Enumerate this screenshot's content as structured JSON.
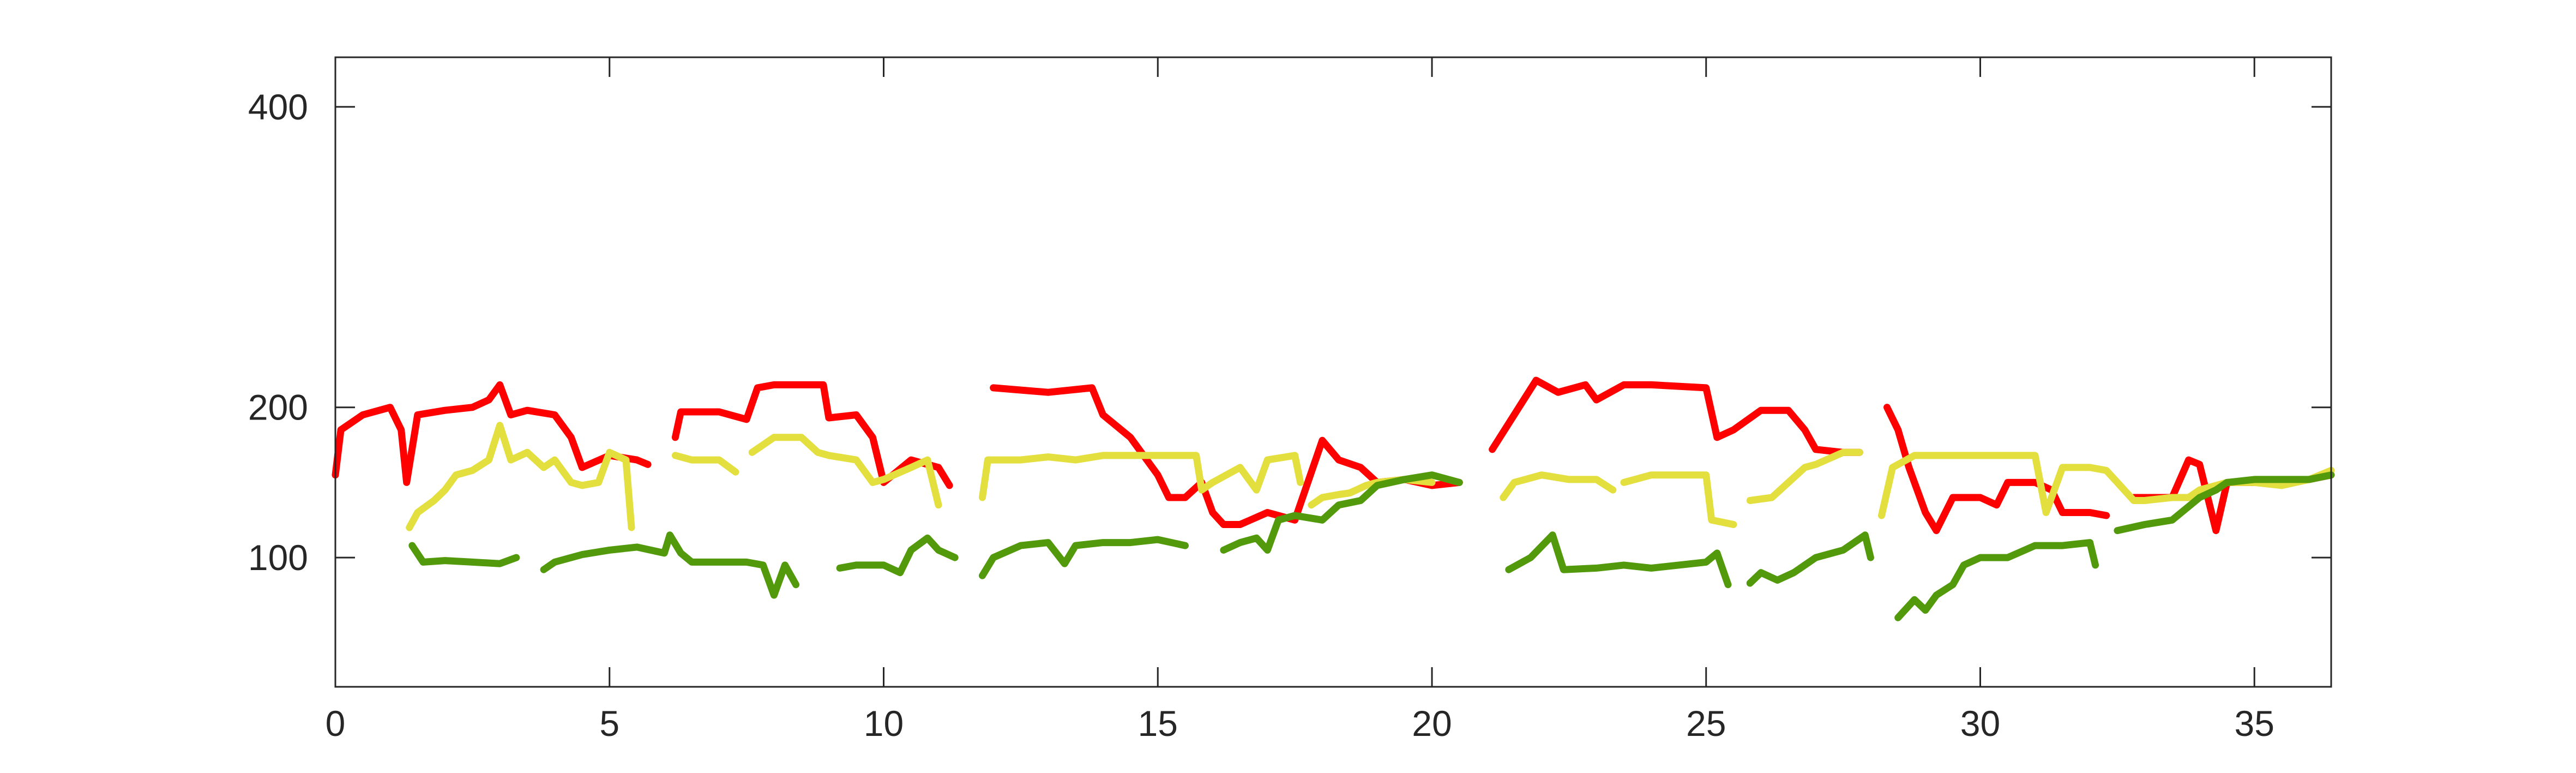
{
  "chart_data": {
    "type": "line",
    "xlim": [
      0,
      36.4
    ],
    "ylim": [
      14,
      433
    ],
    "xticks": [
      0,
      5,
      10,
      15,
      20,
      25,
      30,
      35
    ],
    "yticks": [
      100,
      200,
      400
    ],
    "series": [
      {
        "color": "#ff0000",
        "x": [
          0,
          0.1,
          0.5,
          1.0,
          1.2,
          1.3,
          1.5,
          2,
          2.5,
          2.8,
          3.0,
          3.2,
          3.5,
          4.0,
          4.3,
          4.5,
          5,
          5.5,
          5.7,
          null,
          6.2,
          6.3,
          7,
          7.5,
          7.7,
          8,
          8.5,
          8.9,
          9,
          9.5,
          9.8,
          10,
          10.5,
          11,
          11.2,
          null,
          12,
          13,
          13.8,
          14,
          14.5,
          15,
          15.2,
          15.5,
          15.8,
          16,
          16.2,
          16.5,
          17,
          17.5,
          18,
          18.3,
          18.7,
          19,
          19.5,
          20,
          20.5,
          null,
          21.1,
          21.5,
          21.9,
          22.3,
          22.8,
          23,
          23.5,
          24,
          25,
          25.2,
          25.5,
          26,
          26.5,
          26.8,
          27,
          27.5,
          27.8,
          null,
          28.3,
          28.5,
          28.7,
          29,
          29.2,
          29.5,
          30,
          30.3,
          30.5,
          31,
          31.3,
          31.5,
          32,
          32.3,
          null,
          32.8,
          33,
          33.5,
          33.8,
          34,
          34.3,
          34.5,
          35,
          36,
          36.4
        ],
        "values": [
          155,
          185,
          195,
          200,
          185,
          150,
          195,
          198,
          200,
          205,
          215,
          195,
          198,
          195,
          180,
          160,
          168,
          165,
          162,
          null,
          180,
          197,
          197,
          192,
          213,
          215,
          215,
          215,
          193,
          195,
          180,
          150,
          165,
          160,
          148,
          null,
          213,
          210,
          213,
          195,
          180,
          155,
          140,
          140,
          150,
          130,
          122,
          122,
          130,
          125,
          178,
          165,
          160,
          150,
          152,
          148,
          150,
          null,
          172,
          195,
          218,
          210,
          215,
          205,
          215,
          215,
          213,
          180,
          185,
          198,
          198,
          185,
          172,
          170,
          170,
          null,
          200,
          185,
          160,
          130,
          118,
          140,
          140,
          135,
          150,
          150,
          145,
          130,
          130,
          128,
          null,
          140,
          140,
          140,
          165,
          162,
          118,
          150,
          150,
          152,
          155
        ]
      },
      {
        "color": "#e3df3f",
        "x": [
          1.35,
          1.5,
          1.8,
          2,
          2.2,
          2.5,
          2.8,
          3.0,
          3.2,
          3.5,
          3.8,
          4,
          4.3,
          4.5,
          4.8,
          5,
          5.3,
          5.4,
          null,
          6.2,
          6.5,
          7,
          7.3,
          null,
          7.6,
          8,
          8.5,
          8.8,
          9,
          9.5,
          9.8,
          10,
          10.5,
          10.8,
          11,
          null,
          11.8,
          11.9,
          12.5,
          13,
          13.5,
          14,
          15,
          15.7,
          15.8,
          16,
          16.5,
          16.8,
          17,
          17.5,
          17.6,
          null,
          17.8,
          18,
          18.3,
          18.5,
          18.8,
          19,
          19.5,
          20,
          null,
          21.3,
          21.5,
          22,
          22.5,
          23,
          23.3,
          null,
          23.5,
          24,
          24.5,
          25,
          25.1,
          25.5,
          null,
          25.8,
          26.2,
          26.5,
          26.8,
          27,
          27.5,
          27.8,
          null,
          28.2,
          28.4,
          28.8,
          29.5,
          30,
          30.5,
          31,
          31.2,
          31.5,
          32,
          32.3,
          32.5,
          32.8,
          33,
          33.5,
          33.8,
          34,
          34.5,
          35,
          35.5,
          36,
          36.4
        ],
        "values": [
          120,
          130,
          138,
          145,
          155,
          158,
          165,
          188,
          165,
          170,
          160,
          165,
          150,
          148,
          150,
          170,
          165,
          120,
          null,
          168,
          165,
          165,
          157,
          null,
          170,
          180,
          180,
          170,
          168,
          165,
          150,
          152,
          160,
          165,
          135,
          null,
          140,
          165,
          165,
          167,
          165,
          168,
          168,
          168,
          145,
          150,
          160,
          145,
          165,
          168,
          150,
          null,
          135,
          140,
          142,
          143,
          148,
          150,
          152,
          150,
          null,
          140,
          150,
          155,
          152,
          152,
          145,
          null,
          150,
          155,
          155,
          155,
          125,
          122,
          null,
          138,
          140,
          150,
          160,
          162,
          170,
          170,
          null,
          128,
          160,
          168,
          168,
          168,
          168,
          168,
          130,
          160,
          160,
          158,
          150,
          138,
          138,
          140,
          140,
          145,
          150,
          150,
          148,
          152,
          158
        ]
      },
      {
        "color": "#529a0c",
        "x": [
          1.4,
          1.6,
          2,
          2.5,
          3,
          3.3,
          null,
          3.8,
          4,
          4.5,
          5,
          5.5,
          6,
          6.1,
          6.3,
          6.5,
          7,
          7.5,
          7.8,
          8,
          8.2,
          8.4,
          null,
          9.2,
          9.5,
          10,
          10.3,
          10.5,
          10.8,
          11,
          11.3,
          null,
          11.8,
          12,
          12.5,
          13,
          13.3,
          13.5,
          14,
          14.5,
          15,
          15.5,
          null,
          16.2,
          16.5,
          16.8,
          17,
          17.2,
          17.5,
          18,
          18.3,
          18.7,
          19,
          19.5,
          20,
          20.5,
          null,
          21.4,
          21.8,
          22.2,
          22.4,
          23,
          23.5,
          24,
          25,
          25.2,
          25.4,
          null,
          25.8,
          26,
          26.3,
          26.6,
          27,
          27.5,
          27.9,
          28,
          null,
          28.5,
          28.8,
          29,
          29.2,
          29.5,
          29.7,
          30,
          30.5,
          31,
          31.5,
          32,
          32.1,
          null,
          32.5,
          33,
          33.5,
          34,
          34.3,
          34.5,
          35,
          36,
          36.4
        ],
        "values": [
          108,
          97,
          98,
          97,
          96,
          100,
          null,
          92,
          97,
          102,
          105,
          107,
          103,
          115,
          103,
          97,
          97,
          97,
          95,
          75,
          95,
          82,
          null,
          93,
          95,
          95,
          90,
          105,
          113,
          105,
          100,
          null,
          88,
          100,
          108,
          110,
          96,
          108,
          110,
          110,
          112,
          108,
          null,
          105,
          110,
          113,
          105,
          125,
          128,
          125,
          135,
          138,
          148,
          152,
          155,
          150,
          null,
          92,
          100,
          115,
          92,
          93,
          95,
          93,
          97,
          103,
          82,
          null,
          83,
          90,
          85,
          90,
          100,
          105,
          115,
          100,
          null,
          60,
          72,
          65,
          75,
          82,
          95,
          100,
          100,
          108,
          108,
          110,
          95,
          null,
          118,
          122,
          125,
          140,
          145,
          150,
          152,
          152,
          155
        ]
      }
    ]
  }
}
